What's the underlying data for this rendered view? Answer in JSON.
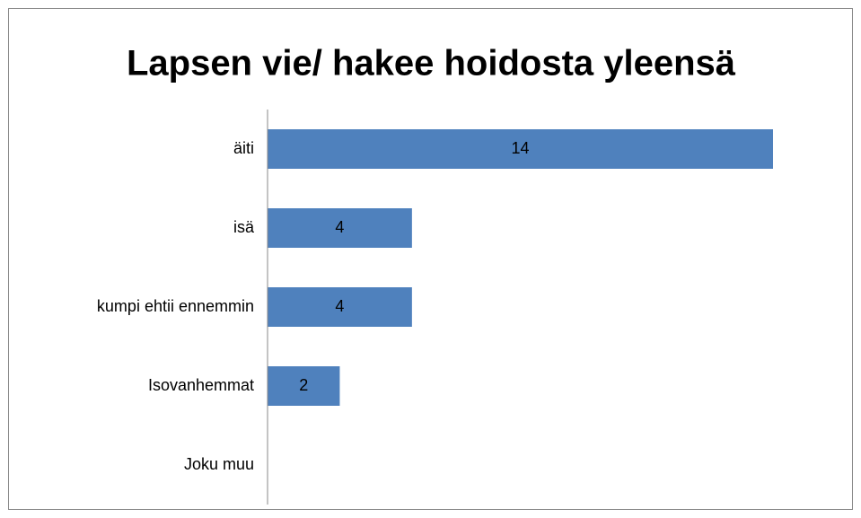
{
  "chart_data": {
    "type": "bar",
    "orientation": "horizontal",
    "title": "Lapsen vie/ hakee hoidosta yleensä",
    "categories": [
      "äiti",
      "isä",
      "kumpi ehtii ennemmin",
      "Isovanhemmat",
      "Joku muu"
    ],
    "values": [
      14,
      4,
      4,
      2,
      0
    ],
    "value_labels": [
      "14",
      "4",
      "4",
      "2",
      null
    ],
    "color": "#4f81bd",
    "xlim": [
      0,
      14
    ]
  }
}
